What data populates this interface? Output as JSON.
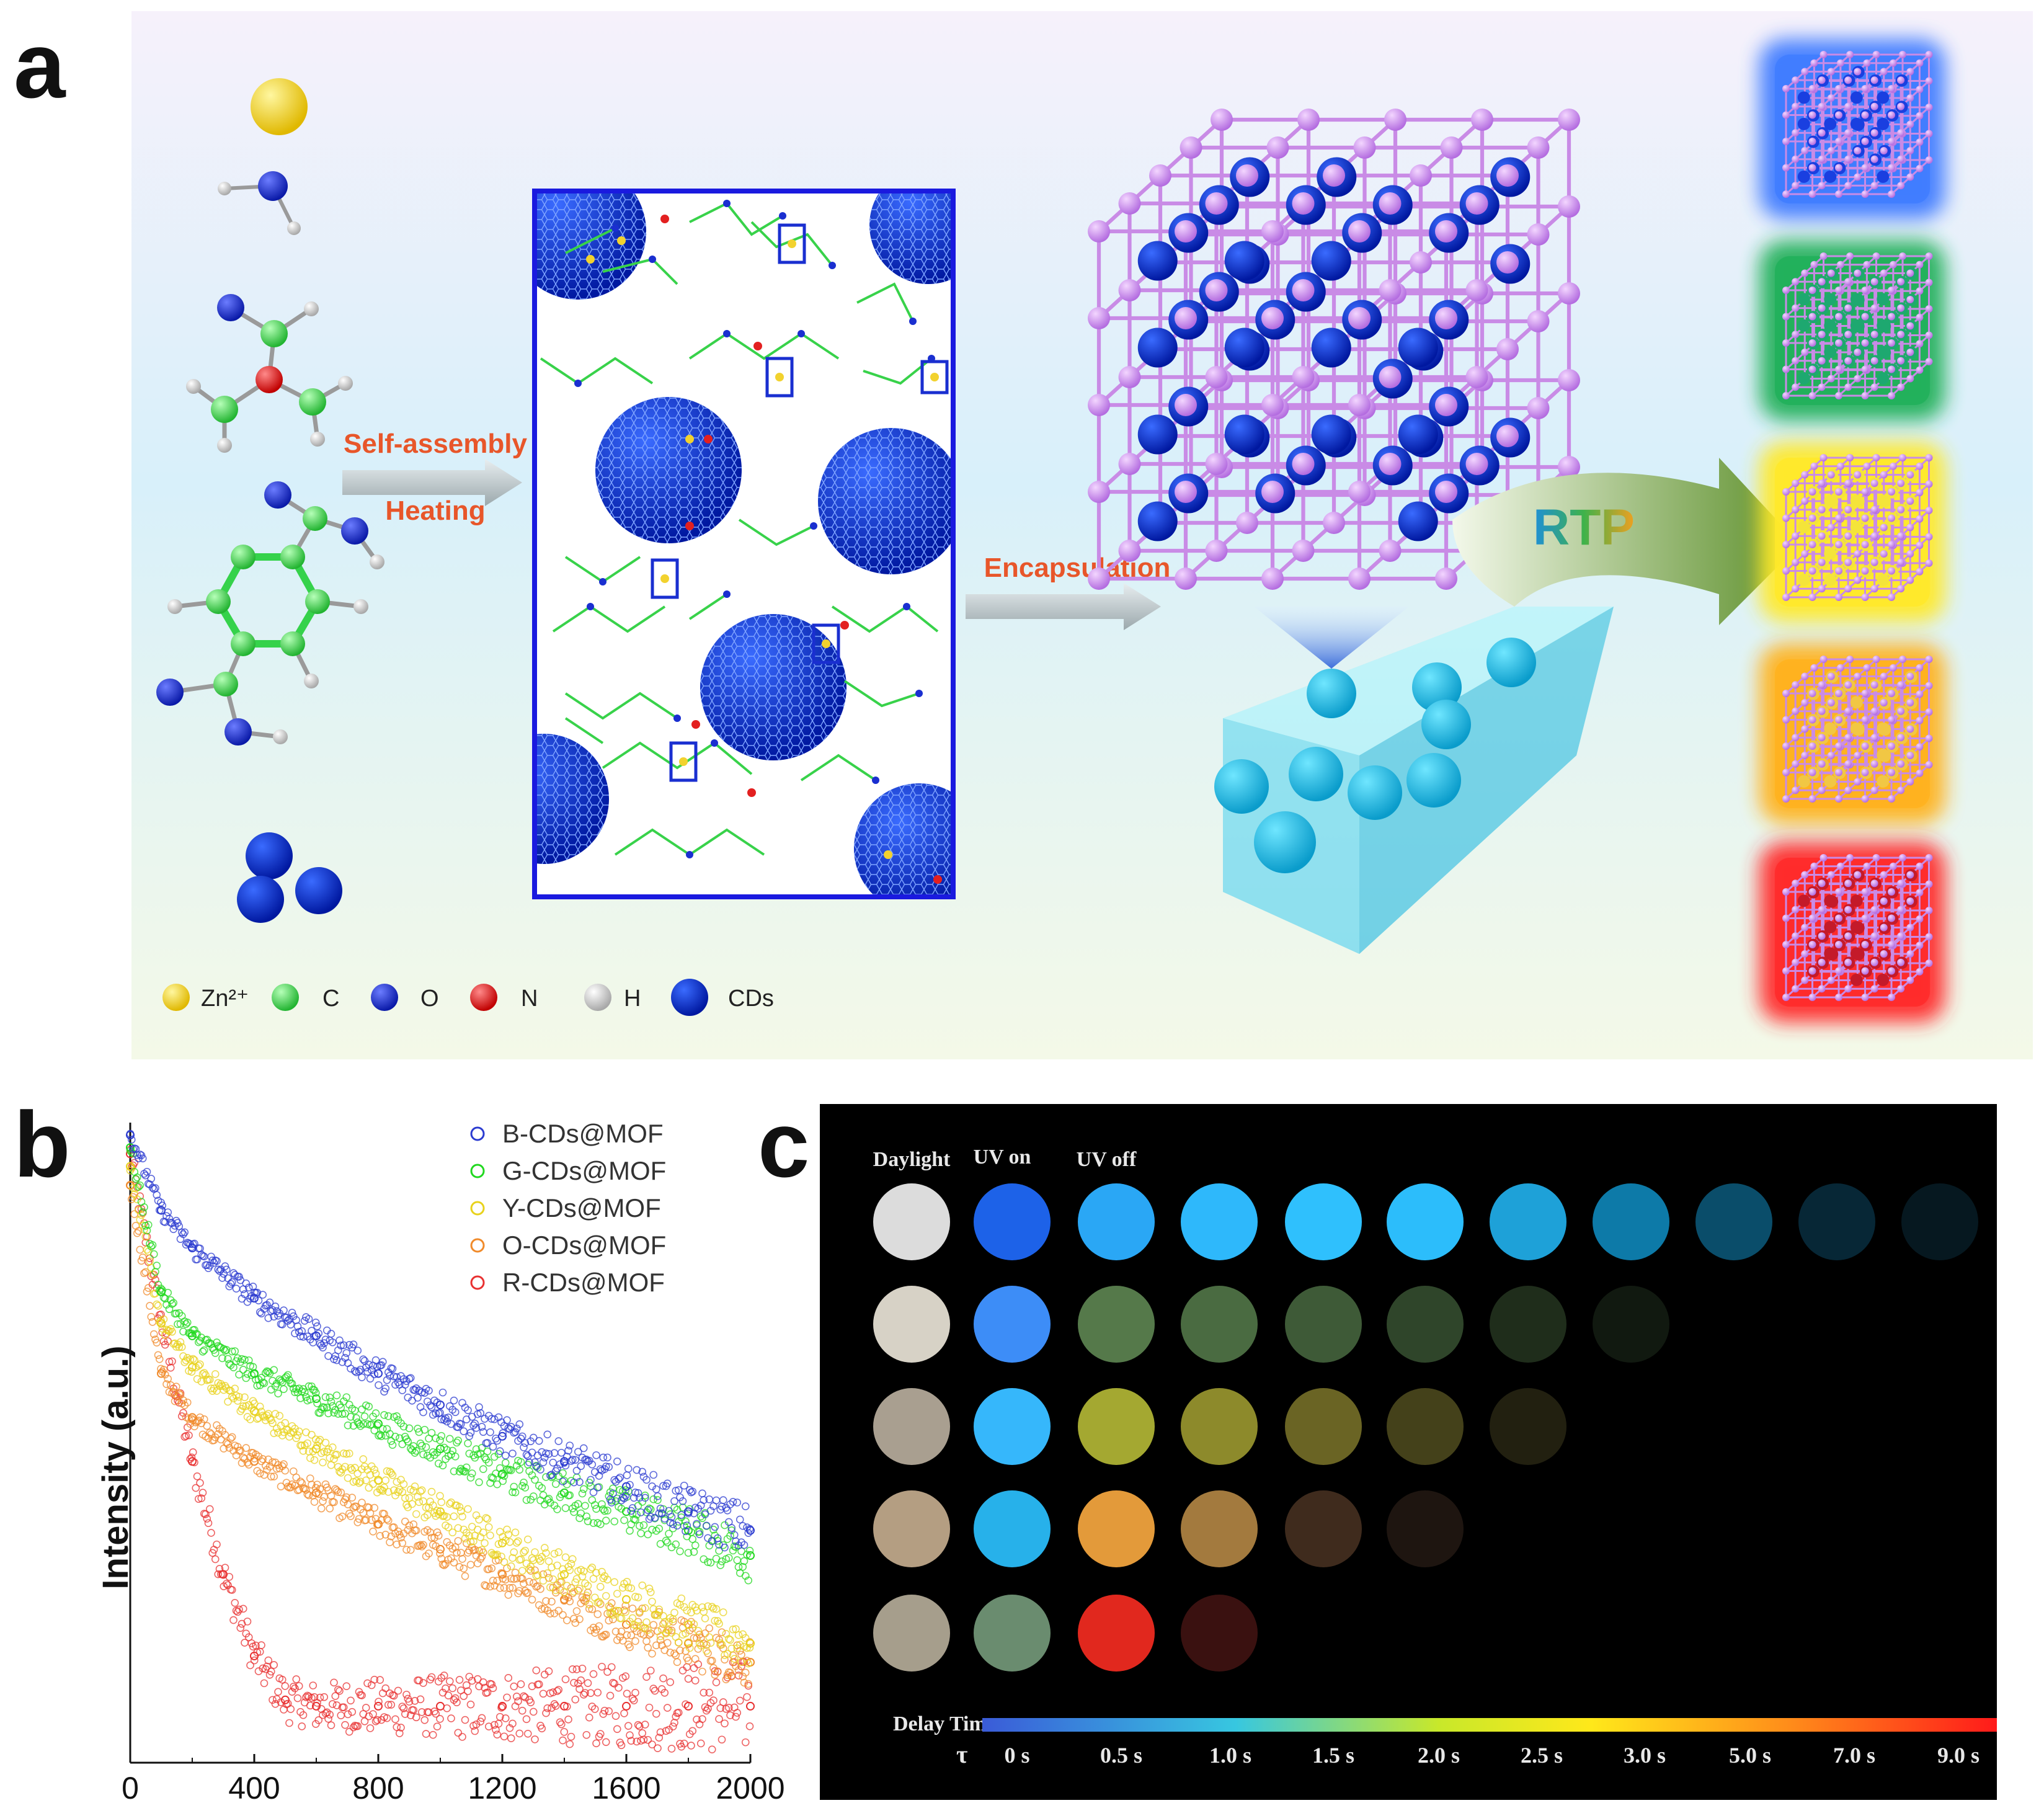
{
  "panel_labels": {
    "a": "a",
    "b": "b",
    "c": "c"
  },
  "panel_a": {
    "legend": [
      {
        "label": "Zn²⁺",
        "color": "#f2d22e"
      },
      {
        "label": "C",
        "color": "#35d24b"
      },
      {
        "label": "O",
        "color": "#1a2fd0"
      },
      {
        "label": "N",
        "color": "#e32020"
      },
      {
        "label": "H",
        "color": "#d9d9d9"
      },
      {
        "label": "CDs",
        "color": "#0b3be0"
      }
    ],
    "arrow1_top": "Self-assembly",
    "arrow1_bottom": "Heating",
    "arrow2": "Encapsulation",
    "arrow3": "RTP",
    "glow_colors": [
      "#3f7cff",
      "#21b05a",
      "#ffe92a",
      "#ffb21f",
      "#ff2a2a"
    ]
  },
  "chart_data": {
    "type": "scatter",
    "title": "",
    "xlabel": "",
    "ylabel": "Intensity (a.u.)",
    "xlim": [
      0,
      2000
    ],
    "x_ticks": [
      "0",
      "400",
      "800",
      "1200",
      "1600",
      "2000"
    ],
    "legend_position": "top-right",
    "series": [
      {
        "name": "B-CDs@MOF",
        "color": "#2b3bd0",
        "x": [
          0,
          100,
          200,
          400,
          600,
          800,
          1000,
          1200,
          1400,
          1600,
          1800,
          2000
        ],
        "y": [
          1.0,
          0.88,
          0.82,
          0.74,
          0.68,
          0.62,
          0.57,
          0.52,
          0.48,
          0.44,
          0.4,
          0.37
        ]
      },
      {
        "name": "G-CDs@MOF",
        "color": "#21d81f",
        "x": [
          0,
          100,
          200,
          400,
          600,
          800,
          1000,
          1200,
          1400,
          1600,
          1800,
          2000
        ],
        "y": [
          0.98,
          0.75,
          0.68,
          0.62,
          0.58,
          0.54,
          0.5,
          0.46,
          0.43,
          0.4,
          0.37,
          0.33
        ]
      },
      {
        "name": "Y-CDs@MOF",
        "color": "#e8d21c",
        "x": [
          0,
          100,
          200,
          400,
          600,
          800,
          1000,
          1200,
          1400,
          1600,
          1800,
          2000
        ],
        "y": [
          0.95,
          0.7,
          0.63,
          0.56,
          0.5,
          0.45,
          0.4,
          0.35,
          0.3,
          0.26,
          0.22,
          0.19
        ]
      },
      {
        "name": "O-CDs@MOF",
        "color": "#f08a2a",
        "x": [
          0,
          100,
          200,
          400,
          600,
          800,
          1000,
          1200,
          1400,
          1600,
          1800,
          2000
        ],
        "y": [
          0.92,
          0.62,
          0.55,
          0.48,
          0.43,
          0.38,
          0.34,
          0.3,
          0.26,
          0.22,
          0.19,
          0.16
        ]
      },
      {
        "name": "R-CDs@MOF",
        "color": "#e83030",
        "x": [
          0,
          100,
          200,
          300,
          400,
          500,
          600,
          800,
          1000,
          1200,
          1400,
          1600,
          1800,
          2000
        ],
        "y": [
          0.97,
          0.7,
          0.48,
          0.3,
          0.17,
          0.1,
          0.09,
          0.09,
          0.09,
          0.09,
          0.09,
          0.09,
          0.09,
          0.09
        ]
      }
    ]
  },
  "panel_c": {
    "headers": [
      "Daylight",
      "UV on",
      "UV off"
    ],
    "delay_label": "Delay Time",
    "tau": "τ",
    "time_labels": [
      "0 s",
      "0.5 s",
      "1.0 s",
      "1.5 s",
      "2.0 s",
      "2.5 s",
      "3.0 s",
      "5.0 s",
      "7.0 s",
      "9.0 s"
    ],
    "rows": [
      [
        "#dcdcdc",
        "#1d62e8",
        "#2aa7f5",
        "#2eb8fb",
        "#2fc0fd",
        "#2cbdfb",
        "#1ea1d8",
        "#0d7aa8",
        "#0a4d6a",
        "#072736",
        "#061820"
      ],
      [
        "#d7d2c6",
        "#3d8df7",
        "#55794a",
        "#4a6b41",
        "#3e5a37",
        "#2f452a",
        "#1f2d1b",
        "#111910"
      ],
      [
        "#a99f90",
        "#36b7fb",
        "#a4a831",
        "#8d8a2b",
        "#6a6424",
        "#44411a",
        "#222010"
      ],
      [
        "#b49e82",
        "#27b1ea",
        "#e39a3a",
        "#a37a3e",
        "#3f2b1d",
        "#1e1510"
      ],
      [
        "#a69e8c",
        "#6a8c6f",
        "#e1281e",
        "#3a1110"
      ]
    ]
  }
}
